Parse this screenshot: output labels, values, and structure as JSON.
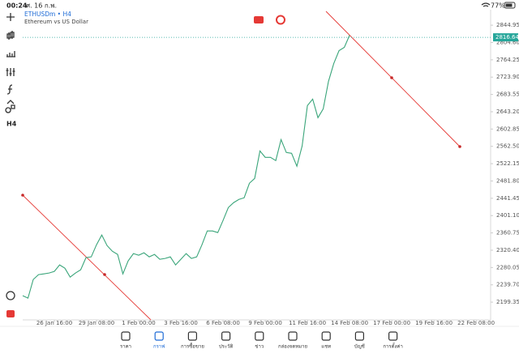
{
  "status_bar": {
    "time": "00:24",
    "date": "ศ. 16 ก.พ.",
    "battery": "77%"
  },
  "header": {
    "symbol": "ETHUSDm • H4",
    "description": "Ethereum vs US Dollar"
  },
  "toolbar": {
    "timeframe": "H4"
  },
  "chart_data": {
    "type": "line",
    "color": "#3aa57a",
    "x": [
      -12,
      -10,
      -8,
      -6,
      -4,
      -2,
      0,
      2,
      4,
      6,
      8,
      10,
      12,
      14,
      16,
      18,
      20,
      22,
      24,
      26,
      28,
      30,
      32,
      34,
      36,
      38,
      40,
      42,
      44,
      46,
      48,
      50,
      52,
      54,
      56,
      58,
      60,
      62,
      64,
      66,
      68,
      70,
      72,
      74,
      76,
      78,
      80,
      82,
      84,
      86,
      88,
      90,
      92,
      94,
      96,
      98,
      100,
      102,
      104,
      106,
      108,
      110,
      112
    ],
    "values": [
      2214.4,
      2208.8,
      2252.1,
      2263.5,
      2265.3,
      2267.2,
      2271.0,
      2286.1,
      2278.5,
      2257.8,
      2267.2,
      2274.8,
      2303.1,
      2304.9,
      2333.2,
      2355.8,
      2331.3,
      2318.1,
      2310.6,
      2265.3,
      2295.5,
      2312.5,
      2308.7,
      2314.4,
      2304.9,
      2310.6,
      2299.3,
      2301.2,
      2304.9,
      2286.1,
      2299.3,
      2312.5,
      2301.2,
      2304.9,
      2333.2,
      2365.3,
      2365.3,
      2361.5,
      2389.8,
      2419.9,
      2431.3,
      2438.8,
      2442.6,
      2476.5,
      2487.8,
      2551.9,
      2536.9,
      2536.9,
      2529.3,
      2578.3,
      2548.2,
      2546.3,
      2516.1,
      2563.3,
      2657.5,
      2672.6,
      2629.3,
      2650.0,
      2714.1,
      2755.6,
      2785.7,
      2793.3,
      2821.6
    ],
    "last_price": 2816.64,
    "last_price_color": "#26a69a",
    "xlim": [
      -12,
      165.5
    ],
    "xticks": [
      {
        "value": 0,
        "label": "26 Jan 16:00"
      },
      {
        "value": 16,
        "label": "29 Jan 08:00"
      },
      {
        "value": 32,
        "label": "1 Feb 00:00"
      },
      {
        "value": 48,
        "label": "3 Feb 16:00"
      },
      {
        "value": 64,
        "label": "6 Feb 08:00"
      },
      {
        "value": 80,
        "label": "9 Feb 00:00"
      },
      {
        "value": 96,
        "label": "11 Feb 16:00"
      },
      {
        "value": 112,
        "label": "14 Feb 08:00"
      },
      {
        "value": 128,
        "label": "17 Feb 00:00"
      },
      {
        "value": 144,
        "label": "19 Feb 16:00"
      },
      {
        "value": 160,
        "label": "22 Feb 08:00"
      }
    ],
    "ylim": [
      2158,
      2881
    ],
    "yticks": [
      2844.95,
      {
        "value": 2804.6,
        "label": "2804.60"
      },
      2764.25,
      {
        "value": 2723.9,
        "label": "2723.90"
      },
      2683.55,
      {
        "value": 2643.2,
        "label": "2643.20"
      },
      2602.85,
      {
        "value": 2562.5,
        "label": "2562.50"
      },
      2522.15,
      {
        "value": 2481.8,
        "label": "2481.80"
      },
      2441.45,
      {
        "value": 2401.1,
        "label": "2401.10"
      },
      2360.75,
      {
        "value": 2320.4,
        "label": "2320.40"
      },
      2280.05,
      {
        "value": 2239.7,
        "label": "2239.70"
      },
      2199.35
    ]
  },
  "tab_bar": {
    "active": 1,
    "tabs": [
      "ราคา",
      "กราฟ",
      "การซื้อขาย",
      "ประวัติ",
      "ข่าว",
      "กล่องจดหมาย",
      "แชท",
      "บัญชี",
      "การตั้งค่า"
    ]
  }
}
